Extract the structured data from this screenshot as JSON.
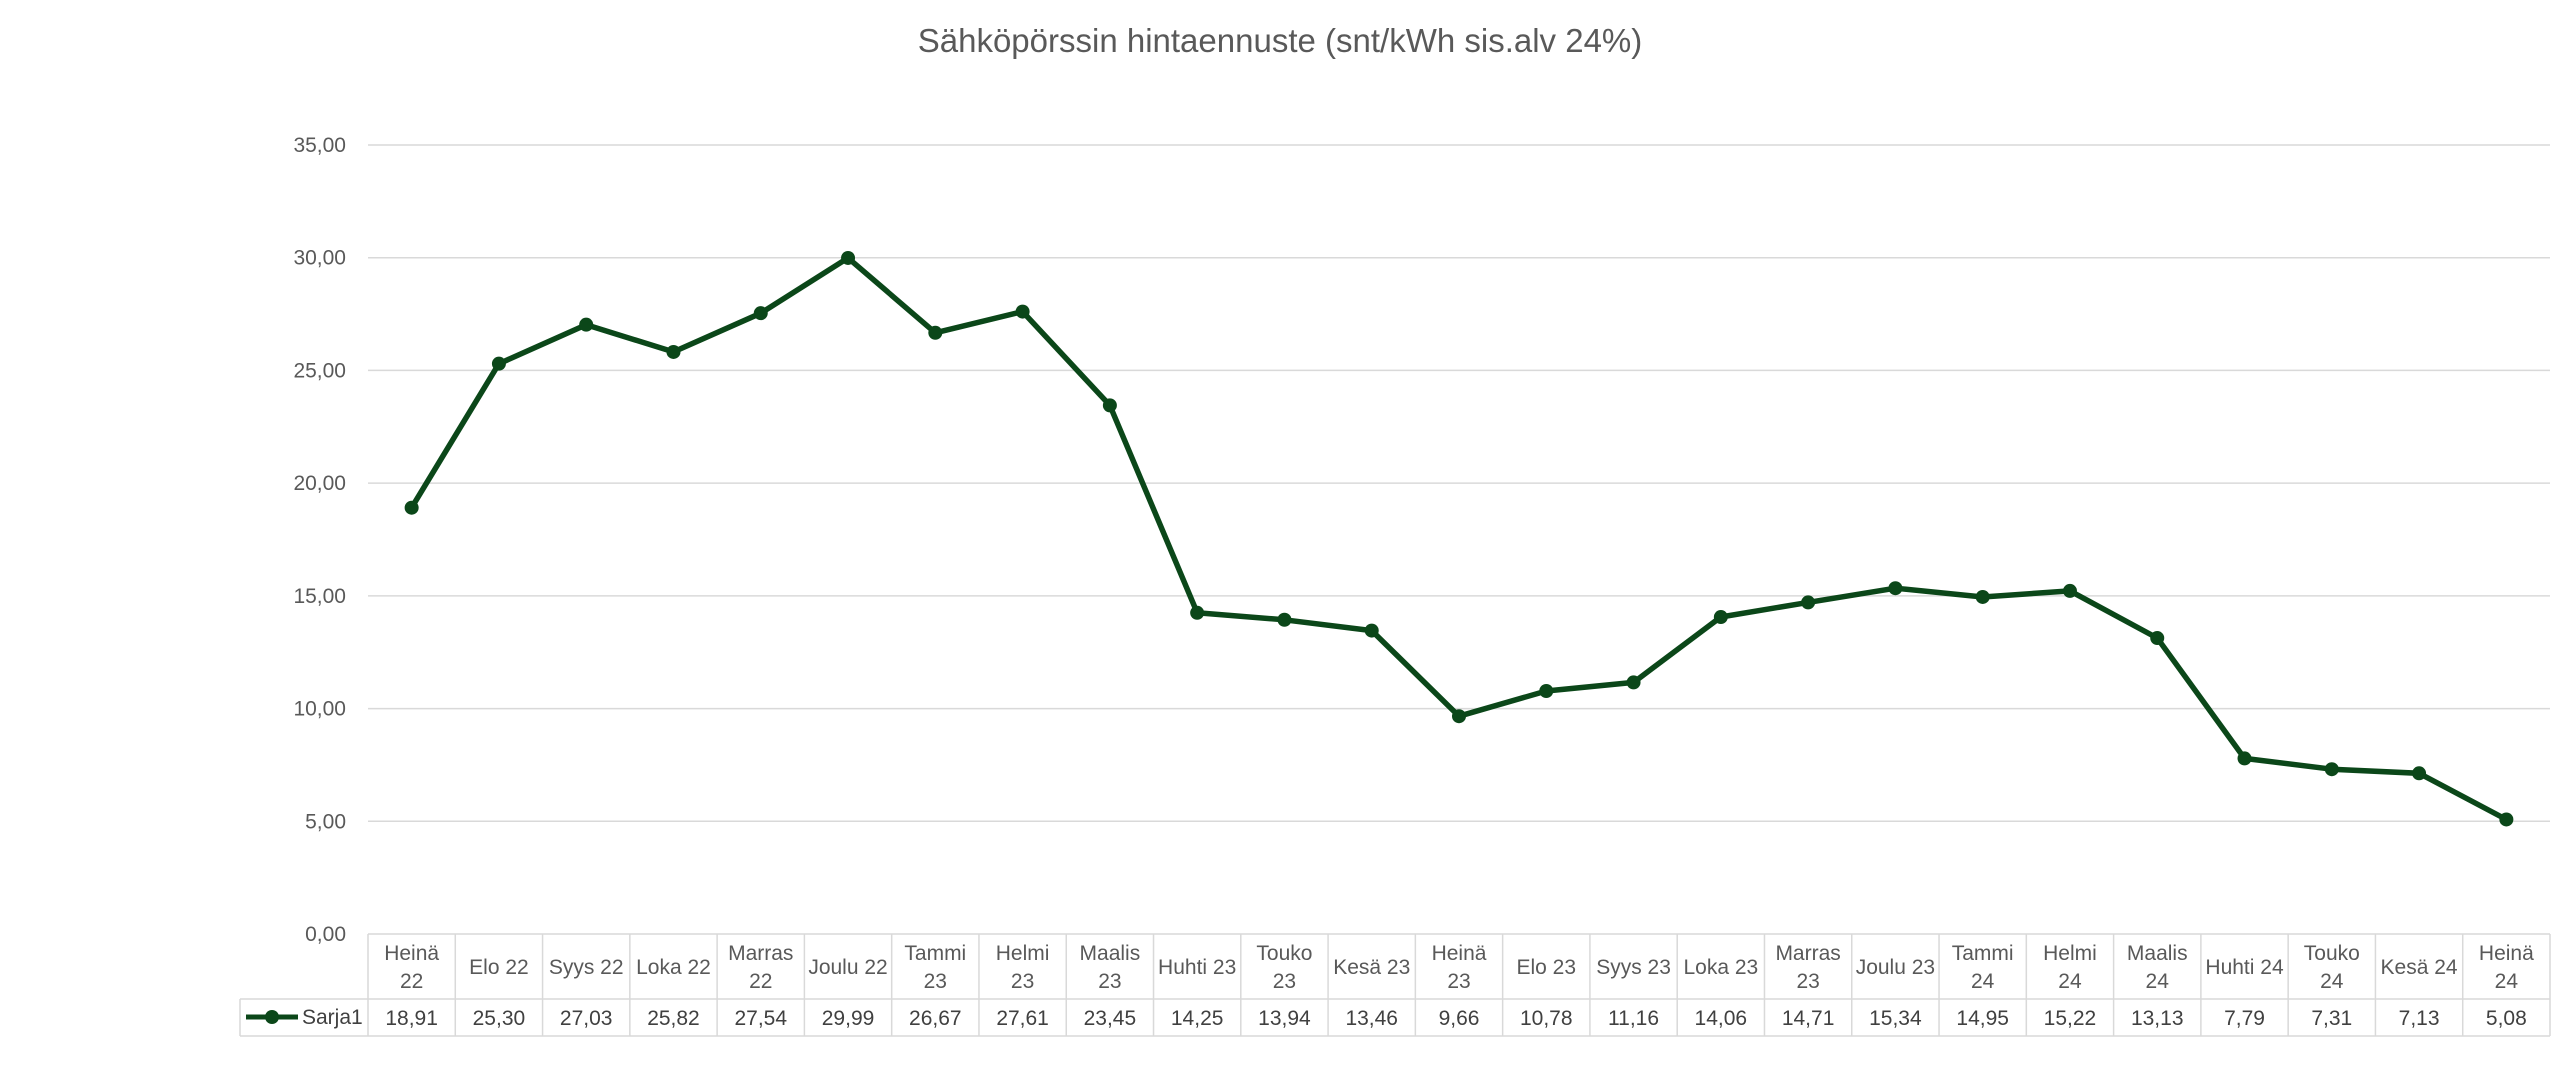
{
  "chart_data": {
    "type": "line",
    "title": "Sähköpörssin hintaennuste (snt/kWh sis.alv 24%)",
    "xlabel": "",
    "ylabel": "",
    "ylim": [
      0,
      35
    ],
    "ytick_labels": [
      "0,00",
      "5,00",
      "10,00",
      "15,00",
      "20,00",
      "25,00",
      "30,00",
      "35,00"
    ],
    "grid": true,
    "data_table": true,
    "categories": [
      [
        "Heinä",
        "22"
      ],
      [
        "Elo 22"
      ],
      [
        "Syys 22"
      ],
      [
        "Loka 22"
      ],
      [
        "Marras",
        "22"
      ],
      [
        "Joulu 22"
      ],
      [
        "Tammi",
        "23"
      ],
      [
        "Helmi",
        "23"
      ],
      [
        "Maalis",
        "23"
      ],
      [
        "Huhti 23"
      ],
      [
        "Touko",
        "23"
      ],
      [
        "Kesä 23"
      ],
      [
        "Heinä",
        "23"
      ],
      [
        "Elo 23"
      ],
      [
        "Syys 23"
      ],
      [
        "Loka 23"
      ],
      [
        "Marras",
        "23"
      ],
      [
        "Joulu 23"
      ],
      [
        "Tammi",
        "24"
      ],
      [
        "Helmi",
        "24"
      ],
      [
        "Maalis",
        "24"
      ],
      [
        "Huhti 24"
      ],
      [
        "Touko",
        "24"
      ],
      [
        "Kesä 24"
      ],
      [
        "Heinä",
        "24"
      ]
    ],
    "series": [
      {
        "name": "Sarja1",
        "color": "#0b4719",
        "values": [
          18.91,
          25.3,
          27.03,
          25.82,
          27.54,
          29.99,
          26.67,
          27.61,
          23.45,
          14.25,
          13.94,
          13.46,
          9.66,
          10.78,
          11.16,
          14.06,
          14.71,
          15.34,
          14.95,
          15.22,
          13.13,
          7.79,
          7.31,
          7.13,
          5.08
        ],
        "value_labels": [
          "18,91",
          "25,30",
          "27,03",
          "25,82",
          "27,54",
          "29,99",
          "26,67",
          "27,61",
          "23,45",
          "14,25",
          "13,94",
          "13,46",
          "9,66",
          "10,78",
          "11,16",
          "14,06",
          "14,71",
          "15,34",
          "14,95",
          "15,22",
          "13,13",
          "7,79",
          "7,31",
          "7,13",
          "5,08"
        ]
      }
    ],
    "colors": {
      "gridline": "#d9d9d9",
      "table_border": "#d9d9d9",
      "text": "#595959"
    }
  }
}
